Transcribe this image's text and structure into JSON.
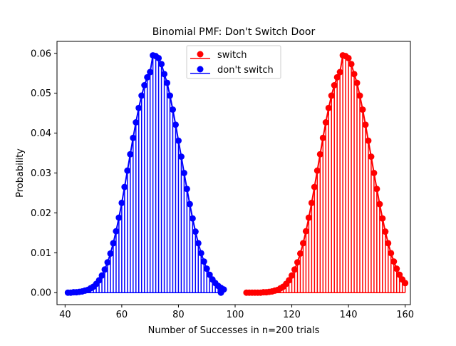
{
  "chart_data": {
    "type": "stem",
    "title": "Binomial PMF: Don't Switch Door",
    "xlabel": "Number of Successes in n=200 trials",
    "ylabel": "Probability",
    "xlim": [
      37.15,
      161.85
    ],
    "ylim": [
      -0.003,
      0.063
    ],
    "xticks": [
      40,
      60,
      80,
      100,
      120,
      140,
      160
    ],
    "yticks": [
      0.0,
      0.01,
      0.02,
      0.03,
      0.04,
      0.05,
      0.06
    ],
    "grid": false,
    "legend_placement": "upper center",
    "legend": [
      {
        "label": "switch",
        "color": "#ff0000"
      },
      {
        "label": "don't switch",
        "color": "#0000ff"
      }
    ],
    "series": [
      {
        "name": "switch",
        "color": "#ff0000",
        "x_start": 104,
        "values": [
          0.0,
          0.0,
          0.0,
          0.0,
          0.0,
          0.0,
          0.0001,
          0.0001,
          0.0002,
          0.0003,
          0.0005,
          0.0007,
          0.0011,
          0.0015,
          0.0022,
          0.0031,
          0.0043,
          0.0058,
          0.0076,
          0.0098,
          0.0124,
          0.0154,
          0.0188,
          0.0225,
          0.0265,
          0.0306,
          0.0347,
          0.0388,
          0.0427,
          0.0463,
          0.0494,
          0.052,
          0.054,
          0.0553,
          0.0595,
          0.0593,
          0.0588,
          0.0573,
          0.0548,
          0.0526,
          0.0494,
          0.0459,
          0.0421,
          0.0381,
          0.0341,
          0.03,
          0.026,
          0.0222,
          0.0186,
          0.0153,
          0.0124,
          0.0099,
          0.0078,
          0.006,
          0.0045,
          0.0033,
          0.0024
        ]
      },
      {
        "name": "don't switch",
        "color": "#0000ff",
        "x_start": 41,
        "values": [
          0.0,
          0.0,
          0.0001,
          0.0001,
          0.0002,
          0.0003,
          0.0005,
          0.0007,
          0.0011,
          0.0015,
          0.0022,
          0.0031,
          0.0043,
          0.0058,
          0.0076,
          0.0098,
          0.0124,
          0.0154,
          0.0188,
          0.0225,
          0.0265,
          0.0306,
          0.0347,
          0.0388,
          0.0427,
          0.0463,
          0.0494,
          0.052,
          0.054,
          0.0553,
          0.0595,
          0.0593,
          0.0588,
          0.0573,
          0.0548,
          0.0526,
          0.0494,
          0.0459,
          0.0421,
          0.0381,
          0.0341,
          0.03,
          0.026,
          0.0222,
          0.0186,
          0.0153,
          0.0124,
          0.0099,
          0.0078,
          0.006,
          0.0045,
          0.0033,
          0.0024,
          0.0017,
          0.0012,
          0.0008
        ]
      }
    ],
    "extra_points": [
      {
        "series": "don't switch",
        "x": 95,
        "y": 0.0
      }
    ]
  }
}
